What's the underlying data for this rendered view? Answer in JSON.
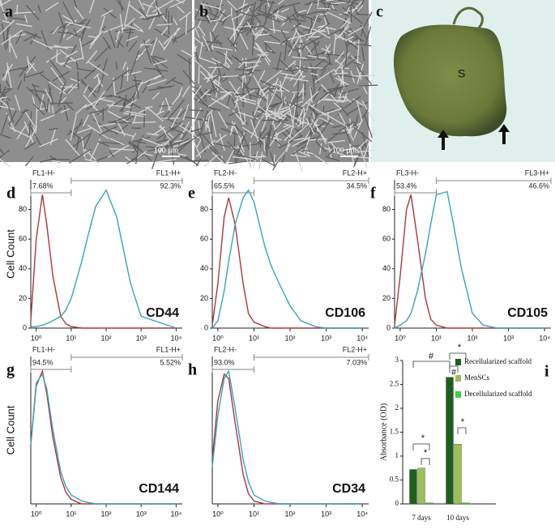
{
  "images": [
    {
      "label": "a",
      "scale": "100 µm"
    },
    {
      "label": "b",
      "scale": "100 µm"
    },
    {
      "label": "c",
      "mark": "S"
    }
  ],
  "chart_data": [
    {
      "type": "line",
      "panel": "d",
      "y_label": "Cell Count",
      "marker": "CD44",
      "xscale": "log",
      "gate_labels": {
        "neg": "FL1-H-",
        "neg_pct": "7.68%",
        "pos": "FL1-H+",
        "pos_pct": "92.3%"
      },
      "gate": 10,
      "x": [
        0.7,
        1,
        1.5,
        2,
        3,
        5,
        7,
        10,
        20,
        30,
        50,
        100,
        200,
        500,
        1000,
        10000
      ],
      "series": [
        {
          "color": "#a8393b",
          "values": [
            5,
            60,
            90,
            70,
            35,
            8,
            3,
            1,
            0,
            0,
            0,
            0,
            0,
            0,
            0,
            0
          ]
        },
        {
          "color": "#3aa3b8",
          "values": [
            1,
            1,
            2,
            3,
            5,
            8,
            12,
            20,
            45,
            62,
            82,
            93,
            75,
            30,
            8,
            0
          ]
        }
      ],
      "xlim": [
        0.7,
        15000
      ],
      "ylim": [
        0,
        100
      ],
      "xticks": [
        {
          "value": 1,
          "label": "10⁰"
        },
        {
          "value": 10,
          "label": "10¹"
        },
        {
          "value": 100,
          "label": "10²"
        },
        {
          "value": 1000,
          "label": "10³"
        },
        {
          "value": 10000,
          "label": "10⁴"
        }
      ],
      "yticks": [
        0,
        20,
        40,
        60,
        80
      ]
    },
    {
      "type": "line",
      "panel": "e",
      "marker": "CD106",
      "xscale": "log",
      "gate_labels": {
        "neg": "FL2-H-",
        "neg_pct": "65.5%",
        "pos": "FL2-H+",
        "pos_pct": "34.5%"
      },
      "gate": 10,
      "x": [
        0.7,
        1,
        1.5,
        2,
        3,
        5,
        7,
        10,
        20,
        30,
        50,
        100,
        200,
        500,
        1000,
        10000
      ],
      "series": [
        {
          "color": "#a8393b",
          "values": [
            2,
            30,
            75,
            88,
            70,
            30,
            10,
            4,
            1,
            0,
            0,
            0,
            0,
            0,
            0,
            0
          ]
        },
        {
          "color": "#3aa3b8",
          "values": [
            0,
            5,
            25,
            45,
            70,
            88,
            93,
            85,
            55,
            42,
            30,
            15,
            5,
            1,
            0,
            0
          ]
        }
      ],
      "xlim": [
        0.7,
        15000
      ],
      "ylim": [
        0,
        100
      ],
      "xticks": [
        {
          "value": 1,
          "label": "10⁰"
        },
        {
          "value": 10,
          "label": "10¹"
        },
        {
          "value": 100,
          "label": "10²"
        },
        {
          "value": 1000,
          "label": "10³"
        },
        {
          "value": 10000,
          "label": "10⁴"
        }
      ],
      "yticks": [
        0,
        20,
        40,
        60,
        80
      ]
    },
    {
      "type": "line",
      "panel": "f",
      "marker": "CD105",
      "xscale": "log",
      "gate_labels": {
        "neg": "FL3-H-",
        "neg_pct": "53.4%",
        "pos": "FL3-H+",
        "pos_pct": "46.6%"
      },
      "gate": 10,
      "x": [
        0.7,
        1,
        1.5,
        2,
        3,
        5,
        7,
        10,
        20,
        30,
        50,
        100,
        200,
        500,
        1000,
        10000
      ],
      "series": [
        {
          "color": "#a8393b",
          "values": [
            2,
            35,
            80,
            90,
            60,
            20,
            6,
            2,
            0,
            0,
            0,
            0,
            0,
            0,
            0,
            0
          ]
        },
        {
          "color": "#3aa3b8",
          "values": [
            0,
            2,
            5,
            10,
            25,
            50,
            70,
            90,
            92,
            70,
            40,
            10,
            2,
            0,
            0,
            0
          ]
        }
      ],
      "xlim": [
        0.7,
        15000
      ],
      "ylim": [
        0,
        100
      ],
      "xticks": [
        {
          "value": 1,
          "label": "10⁰"
        },
        {
          "value": 10,
          "label": "10¹"
        },
        {
          "value": 100,
          "label": "10²"
        },
        {
          "value": 1000,
          "label": "10³"
        },
        {
          "value": 10000,
          "label": "10⁴"
        }
      ],
      "yticks": [
        0,
        20,
        40,
        60,
        80
      ]
    },
    {
      "type": "line",
      "panel": "g",
      "y_label": "Cell Count",
      "marker": "CD144",
      "xscale": "log",
      "gate_labels": {
        "neg": "FL1-H-",
        "neg_pct": "94.5%",
        "pos": "FL1-H+",
        "pos_pct": "5.52%"
      },
      "gate": 10,
      "x": [
        0.7,
        1,
        1.5,
        2,
        3,
        5,
        7,
        10,
        20,
        30,
        50,
        100,
        200,
        500,
        1000,
        10000
      ],
      "series": [
        {
          "color": "#a8393b",
          "values": [
            40,
            80,
            90,
            75,
            45,
            18,
            8,
            3,
            0,
            0,
            0,
            0,
            0,
            0,
            0,
            0
          ]
        },
        {
          "color": "#3aa3b8",
          "values": [
            40,
            82,
            88,
            78,
            50,
            22,
            12,
            6,
            2,
            1,
            0,
            0,
            0,
            0,
            0,
            0
          ]
        }
      ],
      "xlim": [
        0.7,
        15000
      ],
      "ylim": [
        0,
        100
      ],
      "xticks": [
        {
          "value": 1,
          "label": "10⁰"
        },
        {
          "value": 10,
          "label": "10¹"
        },
        {
          "value": 100,
          "label": "10²"
        },
        {
          "value": 1000,
          "label": "10³"
        },
        {
          "value": 10000,
          "label": "10⁴"
        }
      ]
    },
    {
      "type": "line",
      "panel": "h",
      "marker": "CD34",
      "xscale": "log",
      "gate_labels": {
        "neg": "FL2-H-",
        "neg_pct": "93.0%",
        "pos": "FL2-H+",
        "pos_pct": "7.03%"
      },
      "gate": 10,
      "x": [
        0.7,
        1,
        1.5,
        2,
        3,
        5,
        7,
        10,
        20,
        30,
        50,
        100,
        200,
        500,
        1000,
        10000
      ],
      "series": [
        {
          "color": "#a8393b",
          "values": [
            30,
            70,
            88,
            85,
            55,
            20,
            7,
            2,
            0,
            0,
            0,
            0,
            0,
            0,
            0,
            0
          ]
        },
        {
          "color": "#3aa3b8",
          "values": [
            25,
            60,
            85,
            90,
            65,
            30,
            15,
            6,
            2,
            1,
            0,
            0,
            0,
            0,
            0,
            0
          ]
        }
      ],
      "xlim": [
        0.7,
        15000
      ],
      "ylim": [
        0,
        100
      ],
      "xticks": [
        {
          "value": 1,
          "label": "10⁰"
        },
        {
          "value": 10,
          "label": "10¹"
        },
        {
          "value": 100,
          "label": "10²"
        },
        {
          "value": 1000,
          "label": "10³"
        },
        {
          "value": 10000,
          "label": "10⁴"
        }
      ]
    },
    {
      "type": "bar",
      "panel": "i",
      "y_label": "Absorbance (OD)",
      "categories": [
        "7 days",
        "10 days"
      ],
      "series": [
        {
          "name": "Recellularized scaffold",
          "color": "#1e5e1e",
          "values": [
            0.72,
            2.65
          ]
        },
        {
          "name": "MenSCs",
          "color": "#9cbf5a",
          "values": [
            0.75,
            1.25
          ]
        },
        {
          "name": "Decellularized scaffold",
          "color": "#3fd13f",
          "values": [
            0.02,
            0.02
          ]
        }
      ],
      "ylim": [
        0,
        3
      ],
      "yticks": [
        0,
        0.5,
        1,
        1.5,
        2,
        2.5,
        3
      ],
      "annotations": [
        "#",
        "*",
        "#",
        "*",
        "*",
        "*"
      ]
    }
  ]
}
